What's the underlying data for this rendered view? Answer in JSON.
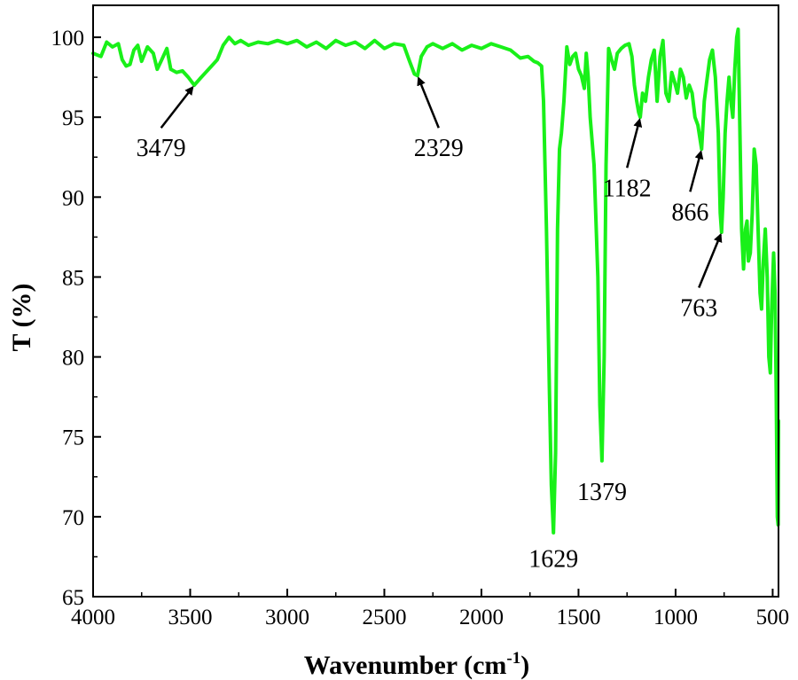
{
  "chart_data": {
    "type": "line",
    "title": "",
    "xlabel_main": "Wavenumber (cm",
    "xlabel_sup": "-1",
    "xlabel_close": ")",
    "ylabel": "T (%)",
    "xlim": [
      4000,
      470
    ],
    "ylim": [
      65,
      102
    ],
    "x_ticks": [
      4000,
      3500,
      3000,
      2500,
      2000,
      1500,
      1000,
      500
    ],
    "y_ticks": [
      65,
      70,
      75,
      80,
      85,
      90,
      95,
      100
    ],
    "grid": false,
    "legend": "none",
    "color": "#19f019",
    "series": [
      {
        "points": [
          [
            4000,
            99.0
          ],
          [
            3960,
            98.8
          ],
          [
            3930,
            99.7
          ],
          [
            3900,
            99.4
          ],
          [
            3870,
            99.6
          ],
          [
            3850,
            98.6
          ],
          [
            3830,
            98.2
          ],
          [
            3810,
            98.3
          ],
          [
            3790,
            99.2
          ],
          [
            3770,
            99.5
          ],
          [
            3750,
            98.5
          ],
          [
            3720,
            99.4
          ],
          [
            3690,
            99.0
          ],
          [
            3670,
            98.0
          ],
          [
            3650,
            98.5
          ],
          [
            3620,
            99.3
          ],
          [
            3600,
            98.0
          ],
          [
            3570,
            97.8
          ],
          [
            3540,
            97.9
          ],
          [
            3510,
            97.5
          ],
          [
            3479,
            97.0
          ],
          [
            3450,
            97.4
          ],
          [
            3420,
            97.8
          ],
          [
            3390,
            98.2
          ],
          [
            3360,
            98.6
          ],
          [
            3330,
            99.5
          ],
          [
            3300,
            100.0
          ],
          [
            3270,
            99.6
          ],
          [
            3240,
            99.8
          ],
          [
            3200,
            99.5
          ],
          [
            3150,
            99.7
          ],
          [
            3100,
            99.6
          ],
          [
            3050,
            99.8
          ],
          [
            3000,
            99.6
          ],
          [
            2950,
            99.8
          ],
          [
            2900,
            99.4
          ],
          [
            2850,
            99.7
          ],
          [
            2800,
            99.3
          ],
          [
            2750,
            99.8
          ],
          [
            2700,
            99.5
          ],
          [
            2650,
            99.7
          ],
          [
            2600,
            99.3
          ],
          [
            2550,
            99.8
          ],
          [
            2500,
            99.3
          ],
          [
            2450,
            99.6
          ],
          [
            2400,
            99.5
          ],
          [
            2370,
            98.5
          ],
          [
            2345,
            97.7
          ],
          [
            2329,
            97.6
          ],
          [
            2310,
            98.8
          ],
          [
            2280,
            99.4
          ],
          [
            2250,
            99.6
          ],
          [
            2200,
            99.3
          ],
          [
            2150,
            99.6
          ],
          [
            2100,
            99.2
          ],
          [
            2050,
            99.5
          ],
          [
            2000,
            99.3
          ],
          [
            1950,
            99.6
          ],
          [
            1900,
            99.4
          ],
          [
            1850,
            99.2
          ],
          [
            1800,
            98.7
          ],
          [
            1760,
            98.8
          ],
          [
            1730,
            98.5
          ],
          [
            1710,
            98.4
          ],
          [
            1690,
            98.2
          ],
          [
            1680,
            96.0
          ],
          [
            1665,
            88.0
          ],
          [
            1650,
            78.0
          ],
          [
            1640,
            72.0
          ],
          [
            1629,
            69.0
          ],
          [
            1618,
            74.0
          ],
          [
            1608,
            88.0
          ],
          [
            1598,
            93.0
          ],
          [
            1588,
            94.0
          ],
          [
            1575,
            96.0
          ],
          [
            1560,
            99.4
          ],
          [
            1545,
            98.3
          ],
          [
            1530,
            98.8
          ],
          [
            1515,
            99.0
          ],
          [
            1500,
            98.0
          ],
          [
            1485,
            97.6
          ],
          [
            1470,
            96.8
          ],
          [
            1460,
            99.0
          ],
          [
            1450,
            97.5
          ],
          [
            1440,
            95.0
          ],
          [
            1420,
            92.0
          ],
          [
            1400,
            85.0
          ],
          [
            1390,
            77.0
          ],
          [
            1379,
            73.5
          ],
          [
            1368,
            80.0
          ],
          [
            1358,
            92.0
          ],
          [
            1345,
            99.3
          ],
          [
            1330,
            98.6
          ],
          [
            1315,
            98.0
          ],
          [
            1300,
            99.0
          ],
          [
            1280,
            99.3
          ],
          [
            1260,
            99.5
          ],
          [
            1240,
            99.6
          ],
          [
            1225,
            98.8
          ],
          [
            1212,
            97.0
          ],
          [
            1200,
            96.0
          ],
          [
            1190,
            95.3
          ],
          [
            1182,
            95.0
          ],
          [
            1170,
            96.5
          ],
          [
            1155,
            96.0
          ],
          [
            1140,
            97.5
          ],
          [
            1125,
            98.6
          ],
          [
            1110,
            99.2
          ],
          [
            1095,
            96.0
          ],
          [
            1080,
            98.8
          ],
          [
            1065,
            99.8
          ],
          [
            1050,
            96.5
          ],
          [
            1035,
            96.0
          ],
          [
            1020,
            97.8
          ],
          [
            1005,
            97.2
          ],
          [
            990,
            96.5
          ],
          [
            975,
            98.0
          ],
          [
            960,
            97.5
          ],
          [
            945,
            96.2
          ],
          [
            930,
            97.0
          ],
          [
            915,
            96.5
          ],
          [
            900,
            95.0
          ],
          [
            885,
            94.5
          ],
          [
            866,
            93.0
          ],
          [
            852,
            96.0
          ],
          [
            840,
            97.2
          ],
          [
            825,
            98.6
          ],
          [
            810,
            99.2
          ],
          [
            795,
            97.5
          ],
          [
            780,
            94.0
          ],
          [
            770,
            89.0
          ],
          [
            763,
            87.8
          ],
          [
            755,
            90.0
          ],
          [
            745,
            94.0
          ],
          [
            735,
            96.0
          ],
          [
            725,
            97.5
          ],
          [
            715,
            96.0
          ],
          [
            705,
            95.0
          ],
          [
            695,
            98.0
          ],
          [
            685,
            100.0
          ],
          [
            678,
            100.5
          ],
          [
            670,
            95.0
          ],
          [
            660,
            88.0
          ],
          [
            650,
            85.5
          ],
          [
            640,
            88.0
          ],
          [
            632,
            88.5
          ],
          [
            625,
            86.0
          ],
          [
            615,
            86.5
          ],
          [
            605,
            89.0
          ],
          [
            595,
            93.0
          ],
          [
            585,
            92.0
          ],
          [
            575,
            88.0
          ],
          [
            565,
            84.0
          ],
          [
            557,
            83.0
          ],
          [
            548,
            86.0
          ],
          [
            538,
            88.0
          ],
          [
            528,
            85.0
          ],
          [
            520,
            80.0
          ],
          [
            512,
            79.0
          ],
          [
            505,
            83.0
          ],
          [
            495,
            86.5
          ],
          [
            488,
            84.0
          ],
          [
            482,
            78.0
          ],
          [
            476,
            70.0
          ],
          [
            472,
            69.5
          ],
          [
            470,
            76.0
          ]
        ]
      }
    ],
    "annotations": [
      {
        "label": "3479",
        "x": 3479,
        "y": 97.0,
        "label_x": 3650,
        "label_y": 93.0
      },
      {
        "label": "2329",
        "x": 2329,
        "y": 97.6,
        "label_x": 2220,
        "label_y": 93.0
      },
      {
        "label": "1182",
        "x": 1182,
        "y": 95.0,
        "label_x": 1250,
        "label_y": 90.5
      },
      {
        "label": "866",
        "x": 866,
        "y": 93.0,
        "label_x": 925,
        "label_y": 89.0
      },
      {
        "label": "763",
        "x": 763,
        "y": 87.8,
        "label_x": 880,
        "label_y": 83.0
      },
      {
        "label": "1629",
        "x": 1629,
        "y": 69.0,
        "label_x": 1629,
        "label_y": 67.3,
        "arrow": false
      },
      {
        "label": "1379",
        "x": 1379,
        "y": 73.5,
        "label_x": 1379,
        "label_y": 71.5,
        "arrow": false
      }
    ]
  }
}
